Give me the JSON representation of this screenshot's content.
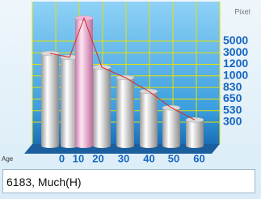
{
  "chart_data": {
    "type": "bar",
    "x_label": "Age",
    "y_label": "Pixel",
    "categories": [
      null,
      "0",
      "10",
      "20",
      "30",
      "40",
      "50",
      "60"
    ],
    "values": [
      2900,
      2300,
      9000,
      1150,
      975,
      770,
      560,
      345
    ],
    "colors": [
      "#d8d8d8",
      "#d8d8d8",
      "#f2b6dc",
      "#d8d8d8",
      "#d8d8d8",
      "#d8d8d8",
      "#d8d8d8",
      "#d8d8d8"
    ],
    "line_color": "#d42a2a",
    "yticks": [
      300,
      530,
      650,
      830,
      1000,
      1200,
      3000,
      5000
    ],
    "grid": true
  },
  "status_box": {
    "text": "6183, Much(H)"
  }
}
